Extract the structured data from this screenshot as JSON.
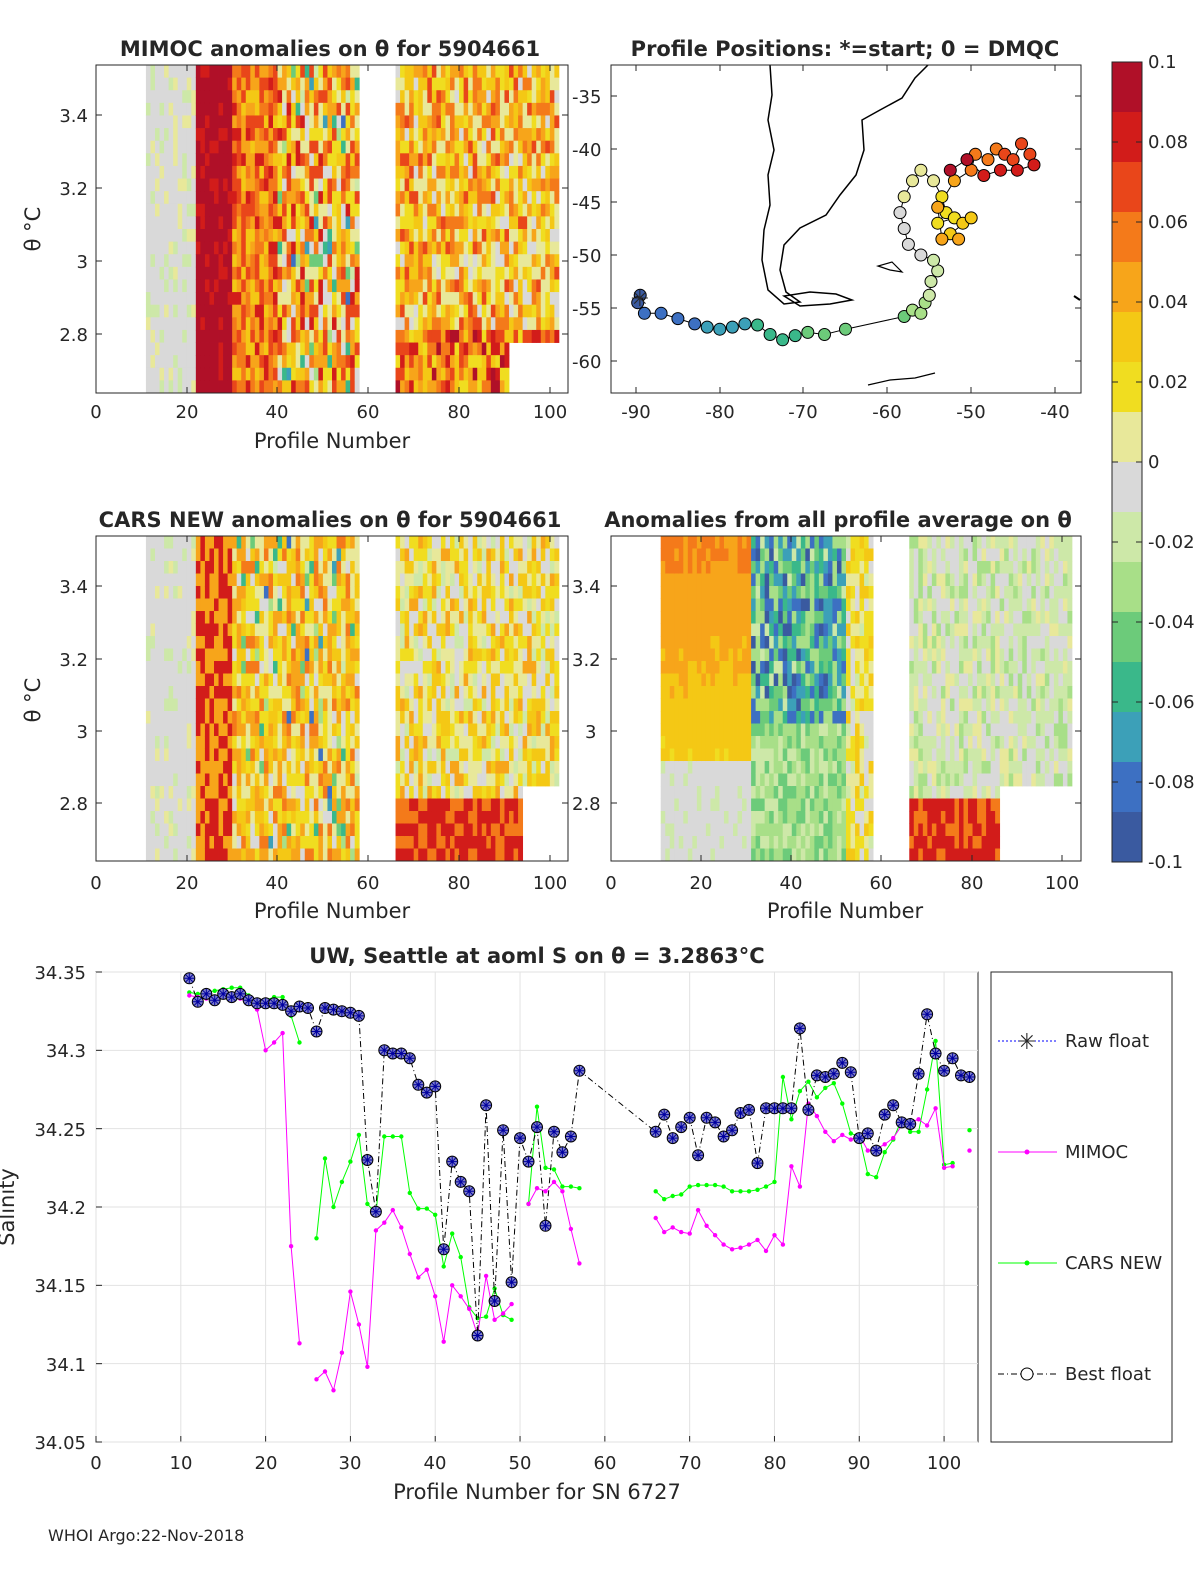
{
  "footer": "WHOI Argo:22-Nov-2018",
  "colorbar": {
    "ticks": [
      "0.1",
      "0.08",
      "0.06",
      "0.04",
      "0.02",
      "0",
      "-0.02",
      "-0.04",
      "-0.06",
      "-0.08",
      "-0.1"
    ],
    "colors": [
      "#b01028",
      "#d21c1a",
      "#e9461a",
      "#f47a1a",
      "#f7a51a",
      "#f4c815",
      "#f0dd20",
      "#e8e89a",
      "#d9d9d9",
      "#cde8a8",
      "#a8df88",
      "#6ccb7a",
      "#3ab88a",
      "#3ca0b8",
      "#3d70c2",
      "#3a5aa0"
    ]
  },
  "panels": {
    "mimoc": {
      "title": "MIMOC anomalies on θ  for 5904661",
      "ylabel": "θ °C",
      "xlabel": "Profile Number",
      "xticks": [
        "0",
        "20",
        "40",
        "60",
        "80",
        "100"
      ],
      "yticks": [
        "3.4",
        "3.2",
        "3",
        "2.8"
      ],
      "xlim": [
        0,
        104
      ],
      "ylim": [
        2.64,
        3.54
      ]
    },
    "map": {
      "title": "Profile Positions: *=start; 0 = DMQC",
      "xticks": [
        "-90",
        "-80",
        "-70",
        "-60",
        "-50",
        "-40"
      ],
      "yticks": [
        "-35",
        "-40",
        "-45",
        "-50",
        "-55",
        "-60"
      ],
      "xlim": [
        -92,
        -37
      ],
      "ylim": [
        -63,
        -32
      ]
    },
    "cars": {
      "title": "CARS NEW anomalies on θ for 5904661",
      "ylabel": "θ °C",
      "xlabel": "Profile Number",
      "xticks": [
        "0",
        "20",
        "40",
        "60",
        "80",
        "100"
      ],
      "yticks": [
        "3.4",
        "3.2",
        "3",
        "2.8"
      ]
    },
    "avg": {
      "title": "Anomalies from all profile average on θ",
      "xlabel": "Profile Number",
      "xticks": [
        "0",
        "20",
        "40",
        "60",
        "80",
        "100"
      ],
      "yticks": [
        "3.4",
        "3.2",
        "3",
        "2.8"
      ]
    }
  },
  "chart_data": {
    "type": "line",
    "title": "UW, Seattle at aoml S on θ = 3.2863°C",
    "xlabel": "Profile Number for SN 6727",
    "ylabel": "Salinity",
    "xlim": [
      0,
      104
    ],
    "ylim": [
      34.05,
      34.35
    ],
    "xticks": [
      "0",
      "10",
      "20",
      "30",
      "40",
      "50",
      "60",
      "70",
      "80",
      "90",
      "100"
    ],
    "yticks": [
      "34.35",
      "34.3",
      "34.25",
      "34.2",
      "34.15",
      "34.1",
      "34.05"
    ],
    "legend": {
      "position": "right",
      "entries": [
        "Raw float",
        "MIMOC",
        "CARS NEW",
        "Best float"
      ]
    },
    "series": [
      {
        "name": "Best float",
        "color": "#000080",
        "x": [
          11,
          12,
          13,
          14,
          15,
          16,
          17,
          18,
          19,
          20,
          21,
          22,
          23,
          24,
          25,
          26,
          27,
          28,
          29,
          30,
          31,
          32,
          33,
          34,
          35,
          36,
          37,
          38,
          39,
          40,
          41,
          42,
          43,
          44,
          45,
          46,
          47,
          48,
          49,
          50,
          51,
          52,
          53,
          54,
          55,
          56,
          57,
          66,
          67,
          68,
          69,
          70,
          71,
          72,
          73,
          74,
          75,
          76,
          77,
          78,
          79,
          80,
          81,
          82,
          83,
          84,
          85,
          86,
          87,
          88,
          89,
          90,
          91,
          92,
          93,
          94,
          95,
          96,
          97,
          98,
          99,
          100,
          101,
          102,
          103
        ],
        "y": [
          34.346,
          34.331,
          34.336,
          34.332,
          34.336,
          34.334,
          34.336,
          34.332,
          34.33,
          34.33,
          34.33,
          34.329,
          34.325,
          34.328,
          34.327,
          34.312,
          34.327,
          34.326,
          34.325,
          34.324,
          34.322,
          34.23,
          34.197,
          34.3,
          34.298,
          34.298,
          34.295,
          34.278,
          34.273,
          34.277,
          34.173,
          34.229,
          34.216,
          34.21,
          34.118,
          34.265,
          34.14,
          34.249,
          34.152,
          34.244,
          34.229,
          34.251,
          34.188,
          34.248,
          34.235,
          34.245,
          34.287,
          34.248,
          34.259,
          34.244,
          34.251,
          34.257,
          34.233,
          34.257,
          34.254,
          34.245,
          34.249,
          34.26,
          34.262,
          34.228,
          34.263,
          34.263,
          34.263,
          34.263,
          34.314,
          34.262,
          34.284,
          34.283,
          34.285,
          34.292,
          34.286,
          34.244,
          34.247,
          34.236,
          34.259,
          34.265,
          34.254,
          34.253,
          34.285,
          34.323,
          34.298,
          34.287,
          34.295,
          34.284,
          34.283
        ]
      },
      {
        "name": "MIMOC",
        "color": "#ff00ff",
        "x": [
          11,
          12,
          13,
          14,
          15,
          16,
          17,
          18,
          19,
          20,
          21,
          22,
          23,
          24,
          26,
          27,
          28,
          29,
          30,
          31,
          32,
          33,
          34,
          35,
          36,
          37,
          38,
          39,
          40,
          41,
          42,
          43,
          44,
          45,
          46,
          47,
          48,
          49,
          51,
          52,
          53,
          54,
          55,
          56,
          57,
          66,
          67,
          68,
          69,
          70,
          71,
          72,
          73,
          74,
          75,
          76,
          77,
          78,
          79,
          80,
          81,
          82,
          83,
          84,
          85,
          86,
          87,
          88,
          89,
          90,
          91,
          92,
          93,
          94,
          95,
          96,
          97,
          98,
          99,
          100,
          101,
          103
        ],
        "y": [
          34.335,
          34.334,
          34.333,
          34.333,
          34.335,
          34.335,
          34.333,
          34.33,
          34.326,
          34.3,
          34.305,
          34.311,
          34.175,
          34.113,
          34.09,
          34.095,
          34.083,
          34.107,
          34.146,
          34.125,
          34.098,
          34.185,
          34.19,
          34.198,
          34.187,
          34.17,
          34.155,
          34.16,
          34.143,
          34.114,
          34.15,
          34.143,
          34.135,
          34.118,
          34.156,
          34.128,
          34.132,
          34.138,
          34.202,
          34.212,
          34.21,
          34.216,
          34.21,
          34.186,
          34.164,
          34.193,
          34.184,
          34.187,
          34.184,
          34.183,
          34.198,
          34.188,
          34.182,
          34.176,
          34.173,
          34.174,
          34.176,
          34.179,
          34.172,
          34.182,
          34.176,
          34.226,
          34.213,
          34.266,
          34.258,
          34.248,
          34.242,
          34.246,
          34.243,
          34.246,
          34.236,
          34.237,
          34.24,
          34.244,
          34.252,
          34.254,
          34.256,
          34.252,
          34.263,
          34.225,
          34.226,
          34.236
        ]
      },
      {
        "name": "CARS NEW",
        "color": "#00ff00",
        "x": [
          11,
          12,
          13,
          14,
          15,
          16,
          17,
          18,
          19,
          20,
          21,
          22,
          23,
          24,
          26,
          27,
          28,
          29,
          30,
          31,
          32,
          33,
          34,
          35,
          36,
          37,
          38,
          39,
          40,
          41,
          42,
          43,
          44,
          45,
          46,
          47,
          48,
          49,
          51,
          52,
          53,
          54,
          55,
          56,
          57,
          66,
          67,
          68,
          69,
          70,
          71,
          72,
          73,
          74,
          75,
          76,
          77,
          78,
          79,
          80,
          81,
          82,
          83,
          84,
          85,
          86,
          87,
          88,
          89,
          90,
          91,
          92,
          93,
          94,
          95,
          96,
          97,
          98,
          99,
          100,
          101,
          103
        ],
        "y": [
          34.337,
          34.336,
          34.337,
          34.338,
          34.339,
          34.34,
          34.34,
          34.335,
          34.331,
          34.332,
          34.334,
          34.334,
          34.322,
          34.305,
          34.18,
          34.231,
          34.2,
          34.216,
          34.229,
          34.246,
          34.202,
          34.196,
          34.245,
          34.245,
          34.245,
          34.209,
          34.199,
          34.199,
          34.195,
          34.162,
          34.183,
          34.168,
          34.136,
          34.129,
          34.13,
          34.148,
          34.131,
          34.128,
          34.202,
          34.264,
          34.225,
          34.224,
          34.213,
          34.213,
          34.212,
          34.21,
          34.205,
          34.207,
          34.208,
          34.213,
          34.214,
          34.214,
          34.214,
          34.213,
          34.21,
          34.21,
          34.21,
          34.211,
          34.213,
          34.216,
          34.283,
          34.256,
          34.274,
          34.28,
          34.27,
          34.276,
          34.279,
          34.266,
          34.247,
          34.245,
          34.221,
          34.219,
          34.235,
          34.243,
          34.256,
          34.248,
          34.248,
          34.275,
          34.306,
          34.227,
          34.228,
          34.249
        ]
      }
    ]
  }
}
